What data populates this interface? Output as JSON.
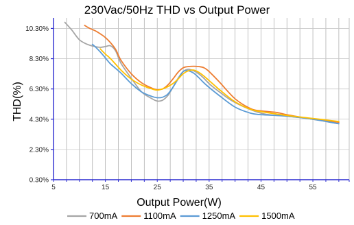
{
  "chart_data": {
    "type": "line",
    "title": "230Vac/50Hz THD vs Output Power",
    "xlabel": "Output Power(W)",
    "ylabel": "THD(%)",
    "xlim": [
      5,
      62
    ],
    "ylim": [
      0.3,
      11.0
    ],
    "x_ticks": [
      5,
      15,
      25,
      35,
      45,
      55
    ],
    "x_tick_labels": [
      "5",
      "15",
      "25",
      "35",
      "45",
      "55"
    ],
    "x_grid": [
      5,
      7.5,
      10,
      12.5,
      15,
      17.5,
      20,
      22.5,
      25,
      27.5,
      30,
      32.5,
      35,
      37.5,
      40,
      42.5,
      45,
      47.5,
      50,
      52.5,
      55,
      57.5,
      60,
      62
    ],
    "y_ticks": [
      0.3,
      2.3,
      4.3,
      6.3,
      8.3,
      10.3
    ],
    "y_tick_labels": [
      "0.30%",
      "2.30%",
      "4.30%",
      "6.30%",
      "8.30%",
      "10.30%"
    ],
    "grid": true,
    "legend_position": "bottom",
    "series": [
      {
        "name": "700mA",
        "color": "#a5a5a5",
        "x": [
          7.2,
          8.5,
          10,
          11.5,
          13,
          14,
          15,
          16,
          17,
          18,
          20,
          22,
          24,
          25,
          26,
          27,
          28,
          29,
          30,
          31,
          32,
          33,
          34,
          35,
          37,
          40,
          45,
          50,
          55,
          60
        ],
        "y": [
          10.7,
          10.2,
          9.55,
          9.25,
          9.1,
          9.05,
          9.1,
          9.15,
          8.8,
          8.0,
          7.0,
          6.1,
          5.65,
          5.5,
          5.55,
          5.85,
          6.4,
          7.0,
          7.45,
          7.6,
          7.5,
          7.3,
          7.0,
          6.65,
          6.1,
          5.4,
          4.7,
          4.5,
          4.3,
          4.0
        ]
      },
      {
        "name": "1100mA",
        "color": "#ed7d31",
        "x": [
          11,
          12,
          13,
          14,
          15,
          16,
          17,
          18,
          20,
          22,
          24,
          25,
          26,
          27,
          28,
          29,
          30,
          31,
          32,
          33,
          34,
          35,
          37,
          40,
          43,
          45,
          48,
          50,
          55,
          60
        ],
        "y": [
          10.5,
          10.3,
          10.15,
          9.95,
          9.7,
          9.35,
          8.9,
          8.2,
          7.3,
          6.7,
          6.35,
          6.25,
          6.3,
          6.55,
          6.95,
          7.4,
          7.7,
          7.78,
          7.8,
          7.78,
          7.7,
          7.45,
          6.75,
          5.65,
          5.0,
          4.85,
          4.75,
          4.6,
          4.3,
          4.1
        ]
      },
      {
        "name": "1250mA",
        "color": "#5b9bd5",
        "x": [
          12.5,
          13,
          14,
          15,
          16,
          18,
          20,
          22,
          24,
          25,
          26,
          27,
          28,
          29,
          30,
          31,
          32,
          33,
          34,
          35,
          37,
          40,
          43,
          45,
          50,
          55,
          60
        ],
        "y": [
          9.25,
          9.1,
          8.75,
          8.35,
          7.95,
          7.35,
          6.65,
          6.1,
          5.8,
          5.72,
          5.75,
          5.95,
          6.4,
          6.95,
          7.45,
          7.5,
          7.35,
          7.05,
          6.7,
          6.4,
          5.85,
          5.1,
          4.7,
          4.6,
          4.5,
          4.3,
          4.0
        ]
      },
      {
        "name": "1500mA",
        "color": "#ffc000",
        "x": [
          14,
          15,
          16,
          18,
          20,
          22,
          24,
          25,
          26,
          27,
          28,
          29,
          30,
          31,
          32,
          33,
          34,
          35,
          37,
          40,
          43,
          45,
          50,
          55,
          60
        ],
        "y": [
          8.95,
          8.6,
          8.3,
          7.55,
          6.95,
          6.55,
          6.3,
          6.22,
          6.3,
          6.45,
          6.65,
          6.95,
          7.3,
          7.5,
          7.55,
          7.4,
          7.15,
          6.85,
          6.25,
          5.45,
          4.95,
          4.8,
          4.55,
          4.35,
          4.15
        ]
      }
    ]
  }
}
